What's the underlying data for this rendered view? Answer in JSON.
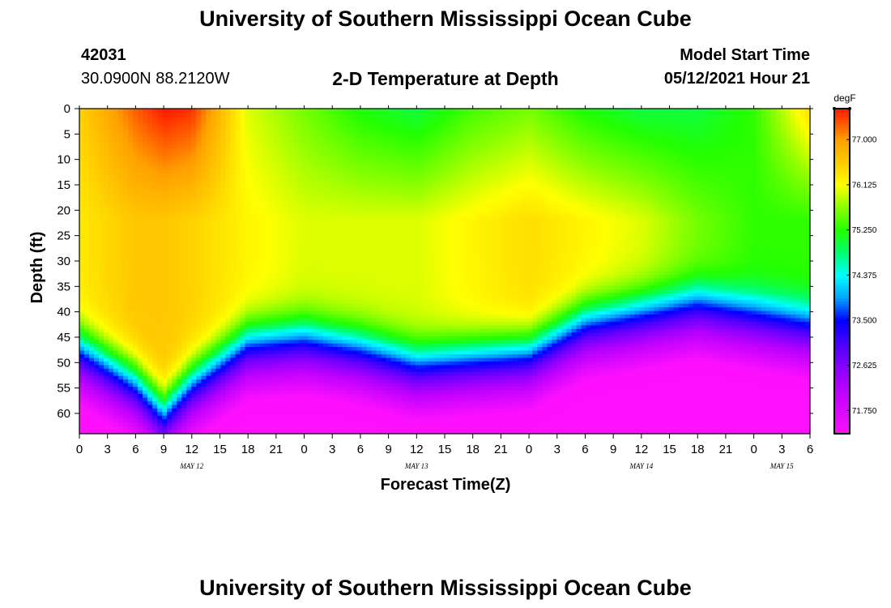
{
  "page": {
    "title": "University of Southern Mississippi Ocean Cube",
    "footer_title": "University of Southern Mississippi Ocean Cube",
    "station_id": "42031",
    "coordinates": "30.0900N  88.2120W",
    "plot_title": "2-D Temperature at Depth",
    "model_start_label": "Model Start Time",
    "model_start_value": "05/12/2021 Hour 21"
  },
  "chart_data": {
    "type": "heatmap",
    "title": "2-D Temperature at Depth",
    "xlabel": "Forecast Time(Z)",
    "ylabel": "Depth (ft)",
    "units": "degF",
    "x_hours": [
      0,
      6,
      9,
      12,
      18,
      24,
      30,
      36,
      42,
      48,
      54,
      60,
      66,
      72,
      78
    ],
    "x_tick_labels": [
      "0",
      "3",
      "6",
      "9",
      "12",
      "15",
      "18",
      "21",
      "0",
      "3",
      "6",
      "9",
      "12",
      "15",
      "18",
      "21",
      "0",
      "3",
      "6",
      "9",
      "12",
      "15",
      "18",
      "21",
      "0",
      "3",
      "6"
    ],
    "day_labels": [
      {
        "text": "MAY 12",
        "hour": 12
      },
      {
        "text": "MAY 13",
        "hour": 36
      },
      {
        "text": "MAY 14",
        "hour": 60
      },
      {
        "text": "MAY 15",
        "hour": 75
      }
    ],
    "y_tick_labels": [
      "0",
      "5",
      "10",
      "15",
      "20",
      "25",
      "30",
      "35",
      "40",
      "45",
      "50",
      "55",
      "60"
    ],
    "xlim": [
      0,
      78
    ],
    "ylim": [
      0,
      64
    ],
    "colorbar": {
      "min": 71.3,
      "max": 77.6,
      "ticks": [
        "77.000",
        "76.125",
        "75.250",
        "74.375",
        "73.500",
        "72.625",
        "71.750"
      ],
      "tick_values": [
        77.0,
        76.125,
        75.25,
        74.375,
        73.5,
        72.625,
        71.75
      ]
    },
    "palette": [
      [
        71.3,
        "#ff10ff"
      ],
      [
        72.2,
        "#b800ff"
      ],
      [
        72.95,
        "#5a00ff"
      ],
      [
        73.5,
        "#0000ff"
      ],
      [
        73.95,
        "#00a8ff"
      ],
      [
        74.375,
        "#00ffff"
      ],
      [
        74.8,
        "#00ff72"
      ],
      [
        75.25,
        "#22ff00"
      ],
      [
        75.7,
        "#8cff00"
      ],
      [
        76.125,
        "#ffff00"
      ],
      [
        76.55,
        "#ffcc00"
      ],
      [
        77.0,
        "#ffa000"
      ],
      [
        77.35,
        "#ff5000"
      ],
      [
        77.6,
        "#ff1800"
      ]
    ],
    "depth_profiles": [
      {
        "hour": 0,
        "thermocline_ft": 45,
        "surface": 76.5,
        "interior": 76.3
      },
      {
        "hour": 6,
        "thermocline_ft": 52,
        "surface": 77.3,
        "interior": 76.6
      },
      {
        "hour": 9,
        "thermocline_ft": 58,
        "surface": 77.6,
        "interior": 76.6
      },
      {
        "hour": 12,
        "thermocline_ft": 52,
        "surface": 77.5,
        "interior": 76.5
      },
      {
        "hour": 18,
        "thermocline_ft": 44,
        "surface": 76.0,
        "interior": 76.2
      },
      {
        "hour": 24,
        "thermocline_ft": 43,
        "surface": 75.6,
        "interior": 76.0
      },
      {
        "hour": 30,
        "thermocline_ft": 45,
        "surface": 75.2,
        "interior": 76.0
      },
      {
        "hour": 36,
        "thermocline_ft": 48,
        "surface": 75.0,
        "interior": 76.0
      },
      {
        "hour": 42,
        "thermocline_ft": 47,
        "surface": 75.4,
        "interior": 76.2
      },
      {
        "hour": 48,
        "thermocline_ft": 46,
        "surface": 75.6,
        "interior": 76.4
      },
      {
        "hour": 54,
        "thermocline_ft": 40,
        "surface": 75.2,
        "interior": 76.2
      },
      {
        "hour": 60,
        "thermocline_ft": 38,
        "surface": 75.0,
        "interior": 76.0
      },
      {
        "hour": 66,
        "thermocline_ft": 36,
        "surface": 75.0,
        "interior": 75.6
      },
      {
        "hour": 72,
        "thermocline_ft": 38,
        "surface": 75.3,
        "interior": 75.3
      },
      {
        "hour": 78,
        "thermocline_ft": 40,
        "surface": 76.4,
        "interior": 75.3
      }
    ]
  }
}
